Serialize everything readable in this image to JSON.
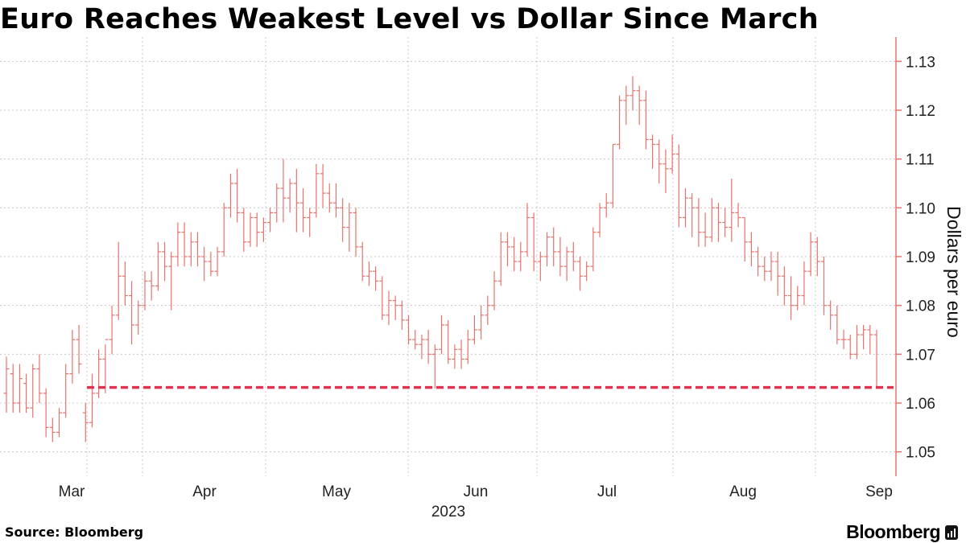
{
  "title": "Euro Reaches Weakest Level vs Dollar Since March",
  "source": "Source: Bloomberg",
  "brand": "Bloomberg",
  "colors": {
    "bars": "#e8736d",
    "axis": "#e8736d",
    "reference": "#e0334f",
    "grid": "#c8c8c8"
  },
  "chart_data": {
    "type": "ohlc",
    "title": "Euro Reaches Weakest Level vs Dollar Since March",
    "ylabel": "Dollars per euro",
    "xlabel": "2023",
    "ylim": [
      1.045,
      1.135
    ],
    "yticks": [
      "1.13",
      "1.12",
      "1.11",
      "1.10",
      "1.09",
      "1.08",
      "1.07",
      "1.06",
      "1.05"
    ],
    "xticks": [
      "Mar",
      "Apr",
      "May",
      "Jun",
      "Jul",
      "Aug",
      "Sep"
    ],
    "year_label": "2023",
    "reference_line": 1.0632,
    "grid": true,
    "bars": [
      [
        1.062,
        1.0695,
        1.058,
        1.067
      ],
      [
        1.066,
        1.068,
        1.058,
        1.06
      ],
      [
        1.06,
        1.068,
        1.058,
        1.065
      ],
      [
        1.064,
        1.066,
        1.058,
        1.059
      ],
      [
        1.059,
        1.068,
        1.057,
        1.067
      ],
      [
        1.067,
        1.07,
        1.06,
        1.062
      ],
      [
        1.062,
        1.063,
        1.053,
        1.055
      ],
      [
        1.055,
        1.057,
        1.052,
        1.054
      ],
      [
        1.054,
        1.059,
        1.053,
        1.058
      ],
      [
        1.058,
        1.068,
        1.057,
        1.066
      ],
      [
        1.066,
        1.075,
        1.064,
        1.073
      ],
      [
        1.073,
        1.076,
        1.066,
        1.068
      ],
      [
        1.058,
        1.06,
        1.052,
        1.056
      ],
      [
        1.056,
        1.066,
        1.055,
        1.062
      ],
      [
        1.062,
        1.071,
        1.061,
        1.069
      ],
      [
        1.069,
        1.072,
        1.062,
        1.073
      ],
      [
        1.073,
        1.08,
        1.07,
        1.078
      ],
      [
        1.078,
        1.093,
        1.077,
        1.086
      ],
      [
        1.086,
        1.089,
        1.08,
        1.082
      ],
      [
        1.082,
        1.085,
        1.072,
        1.076
      ],
      [
        1.076,
        1.081,
        1.074,
        1.08
      ],
      [
        1.08,
        1.087,
        1.079,
        1.085
      ],
      [
        1.085,
        1.087,
        1.081,
        1.084
      ],
      [
        1.084,
        1.093,
        1.083,
        1.091
      ],
      [
        1.091,
        1.093,
        1.085,
        1.088
      ],
      [
        1.088,
        1.091,
        1.079,
        1.09
      ],
      [
        1.09,
        1.097,
        1.088,
        1.095
      ],
      [
        1.095,
        1.097,
        1.088,
        1.09
      ],
      [
        1.09,
        1.095,
        1.088,
        1.093
      ],
      [
        1.093,
        1.095,
        1.088,
        1.09
      ],
      [
        1.09,
        1.092,
        1.085,
        1.089
      ],
      [
        1.089,
        1.091,
        1.086,
        1.087
      ],
      [
        1.087,
        1.092,
        1.086,
        1.091
      ],
      [
        1.091,
        1.101,
        1.09,
        1.1
      ],
      [
        1.1,
        1.107,
        1.098,
        1.105
      ],
      [
        1.105,
        1.108,
        1.097,
        1.099
      ],
      [
        1.099,
        1.1,
        1.091,
        1.093
      ],
      [
        1.093,
        1.099,
        1.092,
        1.098
      ],
      [
        1.098,
        1.099,
        1.092,
        1.095
      ],
      [
        1.095,
        1.098,
        1.093,
        1.097
      ],
      [
        1.097,
        1.1,
        1.095,
        1.099
      ],
      [
        1.099,
        1.105,
        1.097,
        1.104
      ],
      [
        1.104,
        1.11,
        1.097,
        1.102
      ],
      [
        1.102,
        1.106,
        1.099,
        1.105
      ],
      [
        1.105,
        1.108,
        1.095,
        1.101
      ],
      [
        1.101,
        1.104,
        1.095,
        1.098
      ],
      [
        1.098,
        1.1,
        1.094,
        1.099
      ],
      [
        1.099,
        1.109,
        1.098,
        1.107
      ],
      [
        1.107,
        1.109,
        1.1,
        1.103
      ],
      [
        1.103,
        1.105,
        1.099,
        1.101
      ],
      [
        1.101,
        1.105,
        1.098,
        1.1
      ],
      [
        1.1,
        1.102,
        1.093,
        1.096
      ],
      [
        1.096,
        1.101,
        1.091,
        1.099
      ],
      [
        1.099,
        1.1,
        1.09,
        1.092
      ],
      [
        1.092,
        1.093,
        1.085,
        1.086
      ],
      [
        1.086,
        1.089,
        1.084,
        1.087
      ],
      [
        1.087,
        1.088,
        1.083,
        1.085
      ],
      [
        1.085,
        1.086,
        1.077,
        1.078
      ],
      [
        1.078,
        1.083,
        1.076,
        1.081
      ],
      [
        1.081,
        1.082,
        1.077,
        1.08
      ],
      [
        1.08,
        1.081,
        1.075,
        1.077
      ],
      [
        1.077,
        1.078,
        1.072,
        1.073
      ],
      [
        1.073,
        1.075,
        1.071,
        1.072
      ],
      [
        1.072,
        1.074,
        1.069,
        1.073
      ],
      [
        1.073,
        1.075,
        1.068,
        1.07
      ],
      [
        1.07,
        1.072,
        1.063,
        1.071
      ],
      [
        1.071,
        1.078,
        1.07,
        1.076
      ],
      [
        1.076,
        1.077,
        1.068,
        1.069
      ],
      [
        1.069,
        1.072,
        1.067,
        1.071
      ],
      [
        1.071,
        1.073,
        1.067,
        1.069
      ],
      [
        1.069,
        1.075,
        1.068,
        1.073
      ],
      [
        1.073,
        1.078,
        1.072,
        1.075
      ],
      [
        1.075,
        1.08,
        1.073,
        1.078
      ],
      [
        1.078,
        1.082,
        1.076,
        1.08
      ],
      [
        1.08,
        1.087,
        1.079,
        1.085
      ],
      [
        1.085,
        1.095,
        1.084,
        1.093
      ],
      [
        1.093,
        1.095,
        1.088,
        1.092
      ],
      [
        1.092,
        1.094,
        1.087,
        1.089
      ],
      [
        1.089,
        1.093,
        1.087,
        1.091
      ],
      [
        1.091,
        1.101,
        1.09,
        1.098
      ],
      [
        1.098,
        1.099,
        1.087,
        1.089
      ],
      [
        1.089,
        1.091,
        1.085,
        1.09
      ],
      [
        1.09,
        1.095,
        1.088,
        1.094
      ],
      [
        1.094,
        1.096,
        1.088,
        1.091
      ],
      [
        1.091,
        1.094,
        1.086,
        1.088
      ],
      [
        1.088,
        1.092,
        1.085,
        1.091
      ],
      [
        1.091,
        1.093,
        1.087,
        1.089
      ],
      [
        1.089,
        1.09,
        1.083,
        1.086
      ],
      [
        1.086,
        1.089,
        1.085,
        1.088
      ],
      [
        1.088,
        1.096,
        1.087,
        1.095
      ],
      [
        1.095,
        1.101,
        1.094,
        1.1
      ],
      [
        1.1,
        1.103,
        1.098,
        1.101
      ],
      [
        1.101,
        1.113,
        1.1,
        1.113
      ],
      [
        1.113,
        1.123,
        1.112,
        1.122
      ],
      [
        1.122,
        1.125,
        1.117,
        1.123
      ],
      [
        1.123,
        1.127,
        1.12,
        1.124
      ],
      [
        1.124,
        1.125,
        1.117,
        1.122
      ],
      [
        1.122,
        1.124,
        1.112,
        1.114
      ],
      [
        1.114,
        1.115,
        1.108,
        1.113
      ],
      [
        1.113,
        1.114,
        1.105,
        1.109
      ],
      [
        1.109,
        1.112,
        1.103,
        1.108
      ],
      [
        1.108,
        1.115,
        1.107,
        1.111
      ],
      [
        1.111,
        1.113,
        1.096,
        1.098
      ],
      [
        1.098,
        1.104,
        1.096,
        1.102
      ],
      [
        1.102,
        1.103,
        1.094,
        1.1
      ],
      [
        1.1,
        1.102,
        1.092,
        1.095
      ],
      [
        1.095,
        1.099,
        1.092,
        1.094
      ],
      [
        1.094,
        1.102,
        1.093,
        1.1
      ],
      [
        1.1,
        1.101,
        1.093,
        1.097
      ],
      [
        1.097,
        1.1,
        1.094,
        1.096
      ],
      [
        1.096,
        1.106,
        1.093,
        1.099
      ],
      [
        1.099,
        1.101,
        1.096,
        1.098
      ],
      [
        1.098,
        1.098,
        1.089,
        1.093
      ],
      [
        1.093,
        1.095,
        1.088,
        1.091
      ],
      [
        1.091,
        1.092,
        1.086,
        1.088
      ],
      [
        1.088,
        1.09,
        1.085,
        1.087
      ],
      [
        1.087,
        1.091,
        1.085,
        1.089
      ],
      [
        1.089,
        1.091,
        1.082,
        1.086
      ],
      [
        1.086,
        1.088,
        1.08,
        1.082
      ],
      [
        1.082,
        1.086,
        1.077,
        1.08
      ],
      [
        1.08,
        1.084,
        1.079,
        1.082
      ],
      [
        1.082,
        1.089,
        1.08,
        1.087
      ],
      [
        1.087,
        1.095,
        1.086,
        1.093
      ],
      [
        1.093,
        1.094,
        1.086,
        1.089
      ],
      [
        1.089,
        1.09,
        1.078,
        1.08
      ],
      [
        1.08,
        1.081,
        1.075,
        1.078
      ],
      [
        1.078,
        1.08,
        1.072,
        1.073
      ],
      [
        1.073,
        1.075,
        1.071,
        1.073
      ],
      [
        1.073,
        1.074,
        1.069,
        1.07
      ],
      [
        1.07,
        1.076,
        1.069,
        1.074
      ],
      [
        1.074,
        1.076,
        1.071,
        1.075
      ],
      [
        1.075,
        1.076,
        1.07,
        1.074
      ],
      [
        1.074,
        1.075,
        1.063,
        1.0632
      ]
    ]
  }
}
